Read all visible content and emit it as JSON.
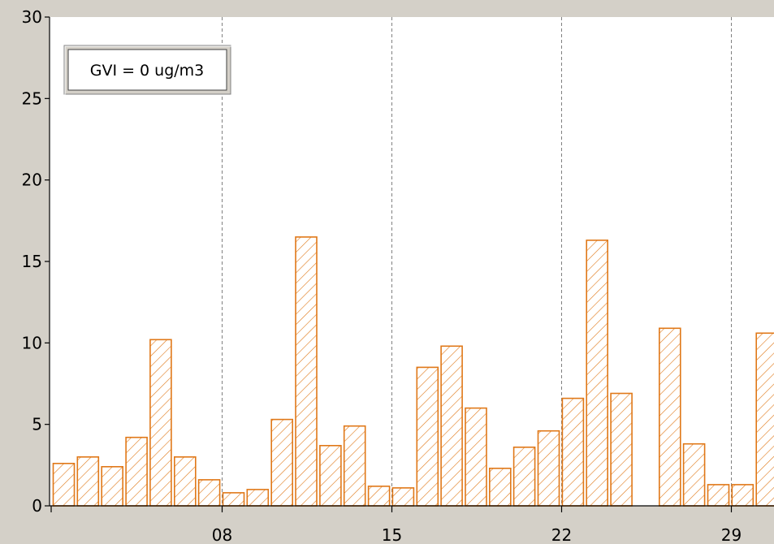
{
  "legend": {
    "text": "GVI = 0 ug/m3"
  },
  "colors": {
    "background": "#d4d0c8",
    "plot_area": "#ffffff",
    "bar_stroke": "#e07818",
    "gridline": "#808080",
    "axis": "#000000"
  },
  "chart_data": {
    "type": "bar",
    "title": "",
    "xlabel": "",
    "ylabel": "",
    "bar_pattern": "diagonal-hatch",
    "grid": "vertical-dashed",
    "legend_position": "top-left",
    "xlim": [
      1,
      31
    ],
    "ylim": [
      0,
      30
    ],
    "yticks": [
      0,
      5,
      10,
      15,
      20,
      25,
      30
    ],
    "ytick_labels": [
      "0",
      "5",
      "10",
      "15",
      "20",
      "25",
      "30"
    ],
    "xticks": [
      8,
      15,
      22,
      29
    ],
    "xtick_labels": [
      "08",
      "15",
      "22",
      "29"
    ],
    "x": [
      1,
      2,
      3,
      4,
      5,
      6,
      7,
      8,
      9,
      10,
      11,
      12,
      13,
      14,
      15,
      16,
      17,
      18,
      19,
      20,
      21,
      22,
      23,
      24,
      26,
      27,
      28,
      29,
      30
    ],
    "values": [
      2.6,
      3.0,
      2.4,
      4.2,
      10.2,
      3.0,
      1.6,
      0.8,
      1.0,
      5.3,
      16.5,
      3.7,
      4.9,
      1.2,
      1.1,
      8.5,
      9.8,
      6.0,
      2.3,
      3.6,
      4.6,
      6.6,
      16.3,
      6.9,
      10.9,
      3.8,
      1.3,
      1.3,
      10.6
    ]
  }
}
